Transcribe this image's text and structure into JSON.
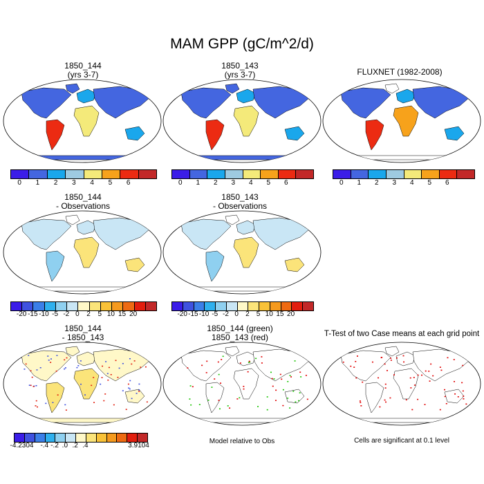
{
  "title": "MAM GPP (gC/m^2/d)",
  "panels": {
    "p1": {
      "line1": "1850_144",
      "line2": "(yrs 3-7)"
    },
    "p2": {
      "line1": "1850_143",
      "line2": "(yrs 3-7)"
    },
    "p3": {
      "line1": "FLUXNET (1982-2008)",
      "line2": ""
    },
    "p4": {
      "line1": "1850_144",
      "line2": "- Observations"
    },
    "p5": {
      "line1": "1850_143",
      "line2": "- Observations"
    },
    "p6": {
      "line1": "1850_144",
      "line2": "- 1850_143"
    },
    "p7": {
      "line1": "1850_144 (green)",
      "line2": "1850_143 (red)"
    },
    "p8": {
      "line1": "T-Test of two Case means at each grid point",
      "line2": ""
    }
  },
  "colorbars": {
    "gpp": {
      "colors": [
        "#3b1de8",
        "#4466e0",
        "#1aa7ec",
        "#9ecae1",
        "#f4ea7a",
        "#f7a21b",
        "#ec2b12",
        "#c22828"
      ],
      "labels": [
        "0",
        "1",
        "2",
        "3",
        "4",
        "5",
        "6"
      ]
    },
    "diff_obs": {
      "colors": [
        "#3b1de8",
        "#3f52e0",
        "#3b7fe8",
        "#2fb0ee",
        "#8fd0f0",
        "#c9e6f5",
        "#fff8c8",
        "#fbe47a",
        "#f9c238",
        "#f59a1e",
        "#ee6a12",
        "#e21e0e",
        "#c22828"
      ],
      "labels": [
        "-20",
        "-15",
        "-10",
        "-5",
        "-2",
        "0",
        "2",
        "5",
        "10",
        "15",
        "20"
      ]
    },
    "diff_case": {
      "colors": [
        "#3b1de8",
        "#3f52e0",
        "#3b7fe8",
        "#2fb0ee",
        "#8fd0f0",
        "#c9e6f5",
        "#fff8c8",
        "#fbe47a",
        "#f9c238",
        "#f59a1e",
        "#ee6a12",
        "#e21e0e",
        "#c22828"
      ],
      "labels": [
        "-4.2304",
        "-.4",
        "-.2",
        ".0",
        ".2",
        ".4",
        "3.9104"
      ]
    }
  },
  "notes": {
    "model_rel": "Model relative to Obs",
    "signif": "Cells are significant at 0.1 level"
  },
  "map_colors": {
    "ocean": "#ffffff",
    "green": "#19c400",
    "red": "#e00000"
  }
}
